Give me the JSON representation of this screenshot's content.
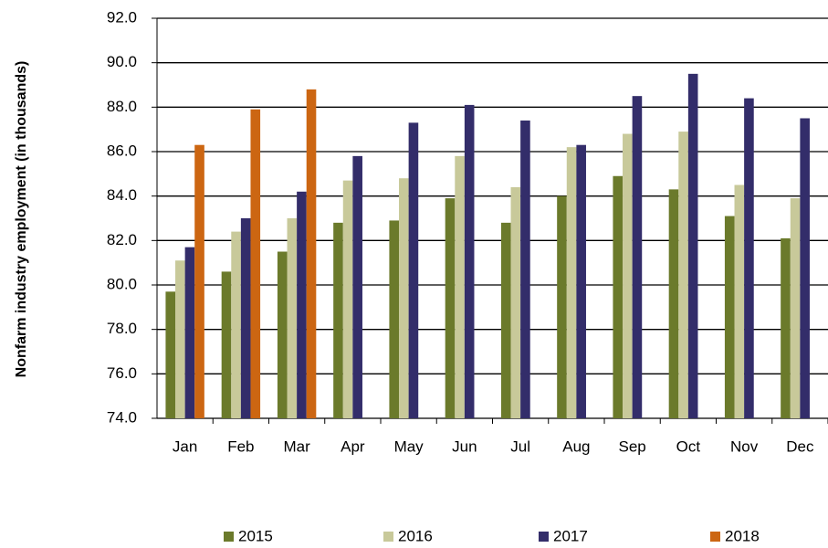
{
  "chart_data": {
    "type": "bar",
    "y_label": "Nonfarm industry employment  (in thousands)",
    "categories": [
      "Jan",
      "Feb",
      "Mar",
      "Apr",
      "May",
      "Jun",
      "Jul",
      "Aug",
      "Sep",
      "Oct",
      "Nov",
      "Dec"
    ],
    "series": [
      {
        "name": "2015",
        "color": "#6b7a2b",
        "values": [
          79.7,
          80.6,
          81.5,
          82.8,
          82.9,
          83.9,
          82.8,
          84.0,
          84.9,
          84.3,
          83.1,
          82.1
        ]
      },
      {
        "name": "2016",
        "color": "#c8c99a",
        "values": [
          81.1,
          82.4,
          83.0,
          84.7,
          84.8,
          85.8,
          84.4,
          86.2,
          86.8,
          86.9,
          84.5,
          83.9
        ]
      },
      {
        "name": "2017",
        "color": "#332d6a",
        "values": [
          81.7,
          83.0,
          84.2,
          85.8,
          87.3,
          88.1,
          87.4,
          86.3,
          88.5,
          89.5,
          88.4,
          87.5
        ]
      },
      {
        "name": "2018",
        "color": "#cc6612",
        "values": [
          86.3,
          87.9,
          88.8,
          null,
          null,
          null,
          null,
          null,
          null,
          null,
          null,
          null
        ]
      }
    ],
    "ylim": [
      74,
      92
    ],
    "yticks": [
      {
        "value": 74,
        "label": "74.0"
      },
      {
        "value": 76,
        "label": "76.0"
      },
      {
        "value": 78,
        "label": "78.0"
      },
      {
        "value": 80,
        "label": "80.0"
      },
      {
        "value": 82,
        "label": "82.0"
      },
      {
        "value": 84,
        "label": "84.0"
      },
      {
        "value": 86,
        "label": "86.0"
      },
      {
        "value": 88,
        "label": "88.0"
      },
      {
        "value": 90,
        "label": "90.0"
      },
      {
        "value": 92,
        "label": "92.0"
      }
    ],
    "grid": true
  }
}
